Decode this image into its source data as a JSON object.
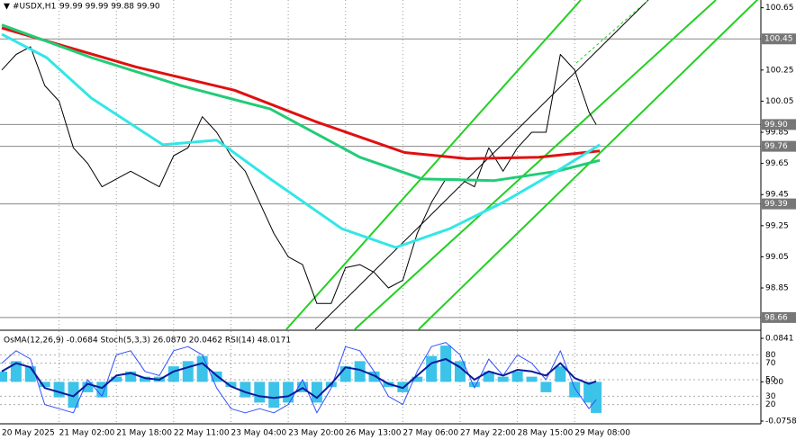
{
  "chart_data": [
    {
      "type": "combo",
      "title": "#USDX,H1",
      "subtitle": "99.99 99.99 99.88 99.90",
      "xlim": [
        -0.5,
        212
      ],
      "ylim": [
        98.59,
        100.7
      ],
      "xticks": [
        {
          "value": 0,
          "label": "20 May 2025"
        },
        {
          "value": 16,
          "label": "21 May 02:00"
        },
        {
          "value": 32,
          "label": "21 May 18:00"
        },
        {
          "value": 48,
          "label": "22 May 11:00"
        },
        {
          "value": 64,
          "label": "23 May 04:00"
        },
        {
          "value": 80,
          "label": "23 May 20:00"
        },
        {
          "value": 96,
          "label": "26 May 13:00"
        },
        {
          "value": 112,
          "label": "27 May 06:00"
        },
        {
          "value": 128,
          "label": "27 May 22:00"
        },
        {
          "value": 144,
          "label": "28 May 15:00"
        },
        {
          "value": 160,
          "label": "29 May 08:00"
        }
      ],
      "yticks": [
        100.65,
        100.25,
        100.05,
        99.85,
        99.65,
        99.45,
        99.25,
        99.05,
        98.85
      ],
      "levels": [
        100.45,
        {
          "value": 99.9,
          "label": "99.90"
        },
        99.76,
        99.39,
        98.66
      ],
      "series": [
        {
          "kind": "line",
          "color": "#000000",
          "width": 1,
          "x": [
            0,
            4,
            8,
            12,
            16,
            20,
            24,
            28,
            32,
            36,
            40,
            44,
            48,
            52,
            56,
            60,
            64,
            68,
            72,
            76,
            80,
            84,
            88,
            92,
            96,
            100,
            104,
            108,
            112,
            116,
            120,
            124,
            128,
            132,
            136,
            140,
            144,
            148,
            152,
            156,
            160,
            164,
            166
          ],
          "values": [
            100.25,
            100.35,
            100.4,
            100.15,
            100.05,
            99.75,
            99.65,
            99.5,
            99.55,
            99.6,
            99.55,
            99.5,
            99.7,
            99.75,
            99.95,
            99.85,
            99.7,
            99.6,
            99.4,
            99.2,
            99.05,
            99.0,
            98.75,
            98.75,
            98.98,
            99.0,
            98.95,
            98.85,
            98.9,
            99.2,
            99.4,
            99.55,
            99.55,
            99.5,
            99.75,
            99.6,
            99.75,
            99.85,
            99.85,
            100.35,
            100.25,
            99.98,
            99.9
          ]
        },
        {
          "kind": "line",
          "color": "#e01010",
          "width": 3,
          "x": [
            0,
            37.5,
            65,
            87.5,
            112.5,
            130,
            150,
            167
          ],
          "values": [
            100.52,
            100.27,
            100.12,
            99.92,
            99.72,
            99.68,
            99.69,
            99.73
          ]
        },
        {
          "kind": "line",
          "color": "#22cc77",
          "width": 3,
          "x": [
            0,
            25,
            50,
            75,
            100,
            117.5,
            137.5,
            155,
            167
          ],
          "values": [
            100.54,
            100.33,
            100.15,
            100.0,
            99.69,
            99.55,
            99.54,
            99.6,
            99.67
          ]
        },
        {
          "kind": "line",
          "color": "#33e6e6",
          "width": 3,
          "x": [
            0,
            12.5,
            25,
            45,
            60,
            75,
            95,
            110,
            125,
            140,
            155,
            167
          ],
          "values": [
            100.48,
            100.33,
            100.07,
            99.77,
            99.8,
            99.55,
            99.23,
            99.11,
            99.23,
            99.4,
            99.6,
            99.77
          ]
        }
      ]
    },
    {
      "type": "combo",
      "title": "OsMA(12,26,9) -0.0684  Stoch(5,3,3) 26.0870 20.0462  RSI(14) 48.0171",
      "xlim": [
        -0.5,
        212
      ],
      "ylim": [
        -0.0758,
        0.0841
      ],
      "y2lim": [
        0,
        100
      ],
      "yticks": [
        0.0841,
        {
          "value": 0,
          "label": "0.00"
        },
        -0.0758
      ],
      "y2ticks": [
        80,
        70,
        50,
        30,
        20
      ],
      "series": [
        {
          "kind": "bar",
          "color": "#3cc3ea",
          "x": [
            0,
            4,
            8,
            12,
            16,
            20,
            24,
            28,
            32,
            36,
            40,
            44,
            48,
            52,
            56,
            60,
            64,
            68,
            72,
            76,
            80,
            84,
            88,
            92,
            96,
            100,
            104,
            108,
            112,
            116,
            120,
            124,
            128,
            132,
            136,
            140,
            144,
            148,
            152,
            156,
            160,
            164,
            166
          ],
          "values": [
            0.02,
            0.04,
            0.03,
            -0.01,
            -0.03,
            -0.05,
            -0.02,
            -0.03,
            0.01,
            0.02,
            0.01,
            0.01,
            0.03,
            0.04,
            0.05,
            0.02,
            -0.01,
            -0.03,
            -0.04,
            -0.05,
            -0.04,
            -0.02,
            -0.04,
            -0.01,
            0.03,
            0.04,
            0.02,
            -0.01,
            -0.02,
            0.01,
            0.05,
            0.07,
            0.04,
            -0.01,
            0.02,
            0.01,
            0.02,
            0.01,
            -0.02,
            0.03,
            -0.03,
            -0.04,
            -0.06
          ]
        },
        {
          "kind": "line",
          "axis": "y2",
          "color": "#3050ff",
          "width": 1,
          "x": [
            0,
            4,
            8,
            12,
            16,
            20,
            24,
            28,
            32,
            36,
            40,
            44,
            48,
            52,
            56,
            60,
            64,
            68,
            72,
            76,
            80,
            84,
            88,
            92,
            96,
            100,
            104,
            108,
            112,
            116,
            120,
            124,
            128,
            132,
            136,
            140,
            144,
            148,
            152,
            156,
            160,
            164,
            166
          ],
          "values": [
            70,
            85,
            75,
            20,
            15,
            10,
            50,
            30,
            80,
            85,
            60,
            55,
            85,
            90,
            80,
            40,
            15,
            10,
            15,
            10,
            20,
            50,
            10,
            40,
            90,
            85,
            60,
            30,
            20,
            60,
            90,
            95,
            80,
            40,
            75,
            55,
            80,
            70,
            50,
            85,
            40,
            15,
            26
          ]
        },
        {
          "kind": "line",
          "axis": "y2",
          "color": "#0a1a9a",
          "width": 2,
          "x": [
            0,
            4,
            8,
            12,
            16,
            20,
            24,
            28,
            32,
            36,
            40,
            44,
            48,
            52,
            56,
            60,
            64,
            68,
            72,
            76,
            80,
            84,
            88,
            92,
            96,
            100,
            104,
            108,
            112,
            116,
            120,
            124,
            128,
            132,
            136,
            140,
            144,
            148,
            152,
            156,
            160,
            164,
            166
          ],
          "values": [
            60,
            70,
            65,
            40,
            35,
            30,
            45,
            40,
            55,
            58,
            52,
            50,
            60,
            65,
            70,
            55,
            42,
            35,
            30,
            28,
            30,
            40,
            28,
            45,
            65,
            62,
            55,
            45,
            40,
            55,
            70,
            75,
            65,
            50,
            60,
            55,
            62,
            60,
            55,
            70,
            52,
            45,
            48
          ]
        }
      ]
    }
  ]
}
